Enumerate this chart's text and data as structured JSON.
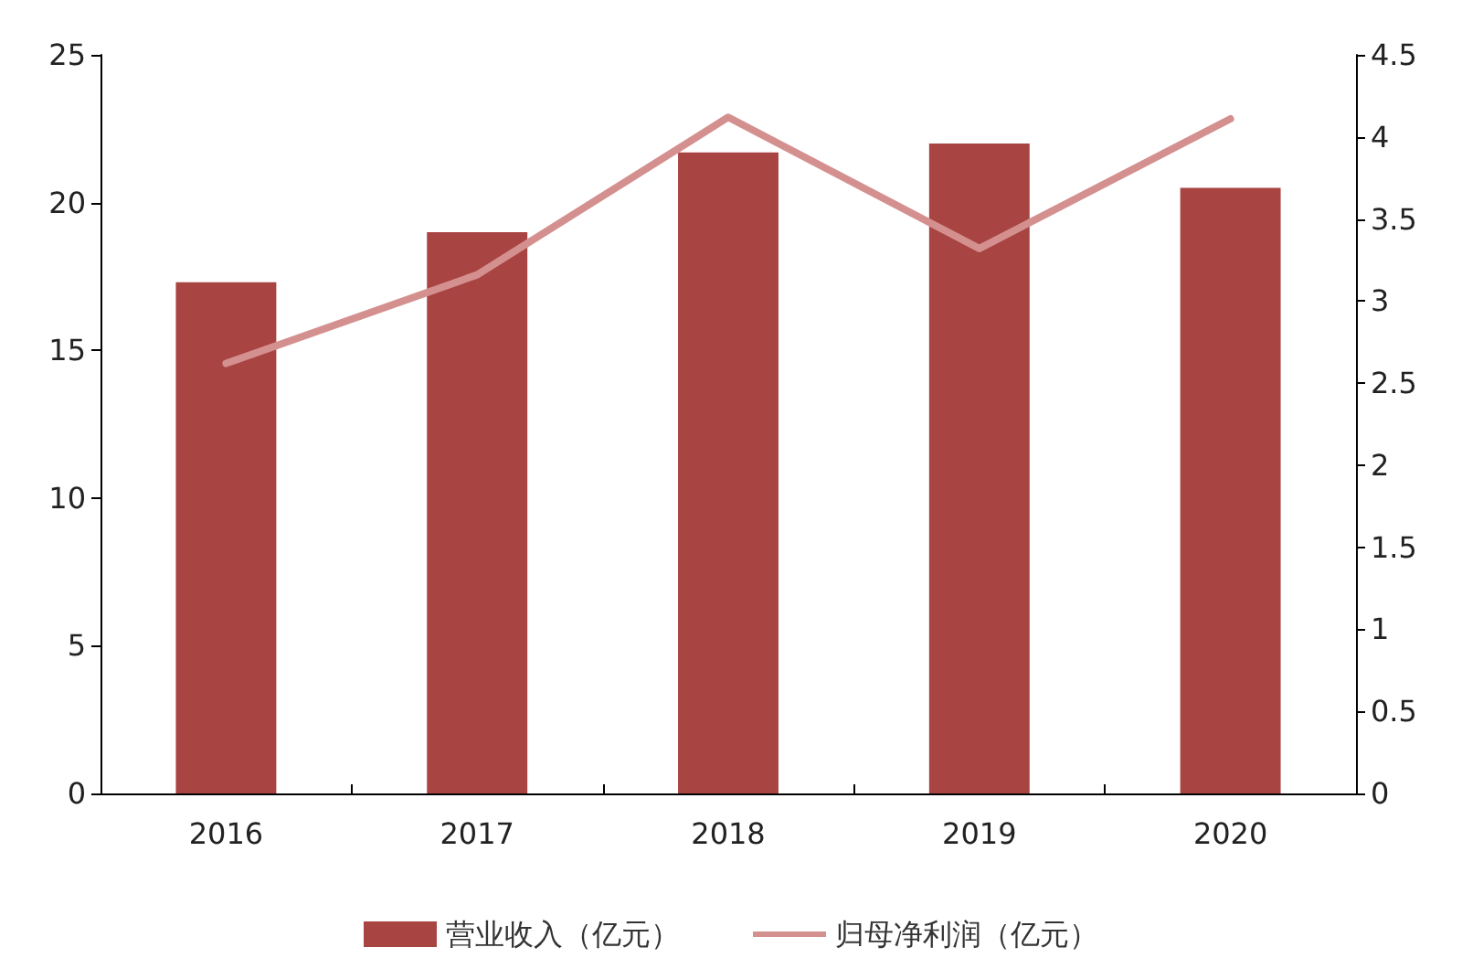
{
  "chart_data": {
    "type": "bar",
    "categories": [
      "2016",
      "2017",
      "2018",
      "2019",
      "2020"
    ],
    "series": [
      {
        "name": "营业收入（亿元）",
        "color": "#a84442",
        "values": [
          17.3,
          19.0,
          21.7,
          22.0,
          20.5
        ]
      },
      {
        "name": "归母净利润（亿元）",
        "type": "line",
        "axis": "y2",
        "color": "#d4908f",
        "values": [
          2.62,
          3.16,
          4.12,
          3.32,
          4.11
        ]
      }
    ],
    "ylim": [
      0,
      25
    ],
    "yticks": [
      0,
      5,
      10,
      15,
      20,
      25
    ],
    "y2lim": [
      0,
      4.5
    ],
    "y2ticks": [
      0,
      0.5,
      1,
      1.5,
      2,
      2.5,
      3,
      3.5,
      4,
      4.5
    ],
    "grid": false,
    "legend": "bottom",
    "marker": "none",
    "line_style": "solid"
  }
}
